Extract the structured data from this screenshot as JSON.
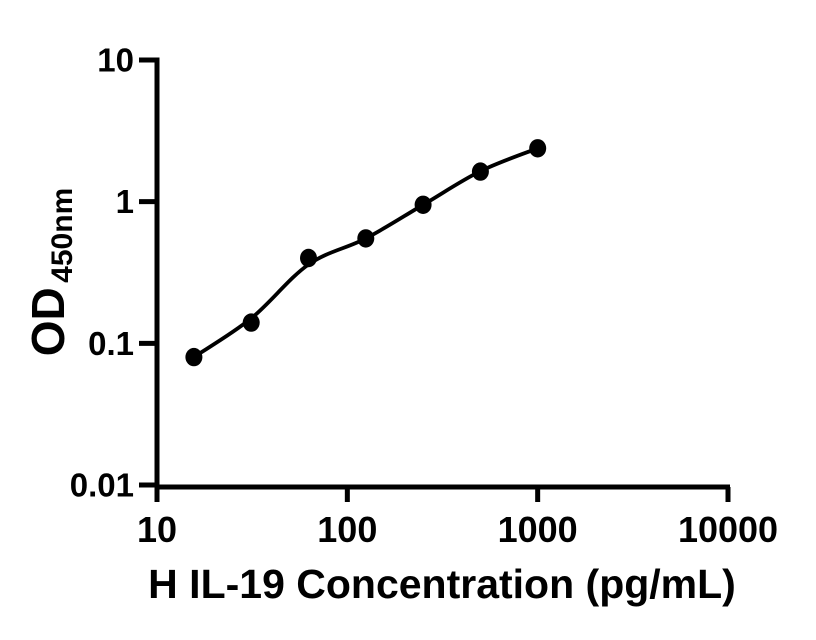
{
  "figure": {
    "background_color": "#ffffff",
    "ink_color": "#000000"
  },
  "chart_data": {
    "type": "scatter",
    "title": "",
    "xlabel": "H IL-19 Concentration (pg/mL)",
    "ylabel": "OD450nm",
    "ylabel_main": "OD",
    "ylabel_subscript": "450nm",
    "x_scale": "log10",
    "y_scale": "log10",
    "xlim": [
      10,
      10000
    ],
    "ylim": [
      0.01,
      10
    ],
    "grid": false,
    "legend_position": "none",
    "x_ticks": [
      {
        "value": 10,
        "label": "10"
      },
      {
        "value": 100,
        "label": "100"
      },
      {
        "value": 1000,
        "label": "1000"
      },
      {
        "value": 10000,
        "label": "10000"
      }
    ],
    "y_ticks": [
      {
        "value": 10,
        "label": "10"
      },
      {
        "value": 1,
        "label": "1"
      },
      {
        "value": 0.1,
        "label": "0.1"
      },
      {
        "value": 0.01,
        "label": "0.01"
      }
    ],
    "series": [
      {
        "name": "H IL-19 standard points",
        "marker": "filled-circle",
        "color": "#000000",
        "x": [
          15.625,
          31.25,
          62.5,
          125,
          250,
          500,
          1000
        ],
        "y": [
          0.08,
          0.14,
          0.4,
          0.55,
          0.95,
          1.63,
          2.38
        ]
      }
    ],
    "fit_curve": {
      "name": "fitted-standard-curve",
      "color": "#000000",
      "points": [
        [
          15.625,
          0.08
        ],
        [
          31.25,
          0.15
        ],
        [
          62.5,
          0.36
        ],
        [
          125,
          0.55
        ],
        [
          250,
          0.95
        ],
        [
          500,
          1.64
        ],
        [
          1000,
          2.38
        ]
      ]
    }
  }
}
